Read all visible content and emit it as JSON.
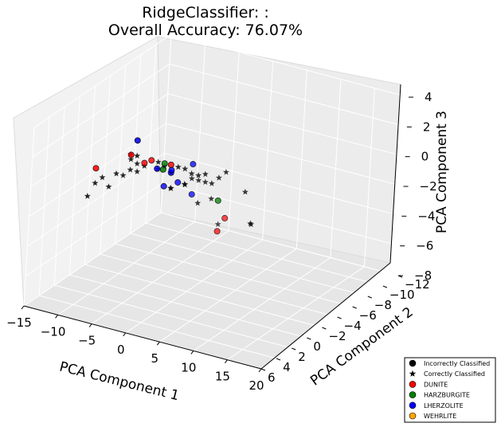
{
  "chart_data": {
    "type": "scatter",
    "projection": "3d",
    "title": "RidgeClassifier: :",
    "subtitle": "Overall Accuracy: 76.07%",
    "xlabel": "PCA Component 1",
    "ylabel": "PCA Component 2",
    "zlabel": "PCA Component 3",
    "xlim": [
      -15,
      20
    ],
    "ylim": [
      -12,
      6
    ],
    "zlim": [
      -8,
      4
    ],
    "x_ticks": [
      "−15",
      "−10",
      "−5",
      "0",
      "5",
      "10",
      "15",
      "20"
    ],
    "y_ticks": [
      "−12",
      "−10",
      "−8",
      "−6",
      "−4",
      "−2",
      "0",
      "2",
      "4",
      "6"
    ],
    "z_ticks": [
      "−8",
      "−6",
      "−4",
      "−2",
      "0",
      "2",
      "4"
    ],
    "grid": true,
    "legend_position": "bottom-right",
    "colors": {
      "DUNITE": "#ff0000",
      "HARZBURGITE": "#008000",
      "LHERZOLITE": "#0000ff",
      "WEHRLITE": "#ffa500",
      "marker_face": "#000000"
    },
    "legend": [
      {
        "label": "Incorrectly Classified",
        "marker": "circle",
        "color": "#000000"
      },
      {
        "label": "Correctly Classified",
        "marker": "star",
        "color": "#000000"
      },
      {
        "label": "DUNITE",
        "marker": "circle",
        "color": "#ff0000"
      },
      {
        "label": "HARZBURGITE",
        "marker": "circle",
        "color": "#008000"
      },
      {
        "label": "LHERZOLITE",
        "marker": "circle",
        "color": "#0000ff"
      },
      {
        "label": "WEHRLITE",
        "marker": "circle",
        "color": "#ffa500"
      }
    ],
    "incorrect_points": [
      {
        "x": -11,
        "y": 1,
        "z": 0,
        "class": "DUNITE"
      },
      {
        "x": -6,
        "y": 1,
        "z": 1.5,
        "class": "DUNITE"
      },
      {
        "x": -3,
        "y": 1,
        "z": 1.5,
        "class": "DUNITE"
      },
      {
        "x": -4,
        "y": 1,
        "z": 1.2,
        "class": "DUNITE"
      },
      {
        "x": 2,
        "y": 3,
        "z": 2.5,
        "class": "DUNITE"
      },
      {
        "x": 6,
        "y": -1,
        "z": -2,
        "class": "DUNITE"
      },
      {
        "x": 5,
        "y": -1,
        "z": -3,
        "class": "DUNITE"
      },
      {
        "x": 3,
        "y": 5,
        "z": 3,
        "class": "HARZBURGITE"
      },
      {
        "x": 7,
        "y": 1,
        "z": 0,
        "class": "HARZBURGITE"
      },
      {
        "x": 0,
        "y": 2,
        "z": 2,
        "class": "HARZBURGITE"
      },
      {
        "x": -2,
        "y": 4,
        "z": 4,
        "class": "LHERZOLITE"
      },
      {
        "x": 0,
        "y": 3,
        "z": 2,
        "class": "LHERZOLITE"
      },
      {
        "x": 1,
        "y": 2,
        "z": 1.5,
        "class": "LHERZOLITE"
      },
      {
        "x": 0,
        "y": 1,
        "z": 1.2,
        "class": "LHERZOLITE"
      },
      {
        "x": 1,
        "y": 1,
        "z": 0.5,
        "class": "LHERZOLITE"
      },
      {
        "x": -1,
        "y": 1,
        "z": 0,
        "class": "LHERZOLITE"
      },
      {
        "x": 1,
        "y": -1,
        "z": -1,
        "class": "LHERZOLITE"
      },
      {
        "x": 2,
        "y": 0,
        "z": 1.5,
        "class": "LHERZOLITE"
      }
    ],
    "correct_points": [
      {
        "x": -12,
        "y": 1,
        "z": -2
      },
      {
        "x": -11,
        "y": 1,
        "z": -1
      },
      {
        "x": -9,
        "y": 1,
        "z": -1
      },
      {
        "x": -10,
        "y": 1,
        "z": -0.5
      },
      {
        "x": -8,
        "y": 1,
        "z": 0
      },
      {
        "x": -7,
        "y": 1,
        "z": 0
      },
      {
        "x": -6,
        "y": 1,
        "z": 0.5
      },
      {
        "x": -5,
        "y": 1,
        "z": 0.5
      },
      {
        "x": -4,
        "y": 1,
        "z": 1
      },
      {
        "x": -6,
        "y": 1,
        "z": 1.2
      },
      {
        "x": -2,
        "y": 1,
        "z": 1.5
      },
      {
        "x": -1,
        "y": 2,
        "z": 1.5
      },
      {
        "x": 0,
        "y": 2,
        "z": 1.8
      },
      {
        "x": 1,
        "y": 2,
        "z": 1.5
      },
      {
        "x": 2,
        "y": 2,
        "z": 2
      },
      {
        "x": 3,
        "y": 2,
        "z": 2
      },
      {
        "x": 4,
        "y": 2,
        "z": 1.8
      },
      {
        "x": 5,
        "y": 2,
        "z": 1.8
      },
      {
        "x": 6,
        "y": 2,
        "z": 2
      },
      {
        "x": 7,
        "y": 2,
        "z": 1.5
      },
      {
        "x": 8,
        "y": 2,
        "z": 2
      },
      {
        "x": 9,
        "y": 2,
        "z": 2.5
      },
      {
        "x": 3,
        "y": 1,
        "z": 1
      },
      {
        "x": 4,
        "y": 1,
        "z": 1
      },
      {
        "x": 5,
        "y": 1,
        "z": 1
      },
      {
        "x": 2,
        "y": 1,
        "z": 0.5
      },
      {
        "x": 0,
        "y": 1,
        "z": 0
      },
      {
        "x": 6,
        "y": 1,
        "z": 0
      },
      {
        "x": -5,
        "y": 2,
        "z": 2
      },
      {
        "x": -4,
        "y": 2,
        "z": 1.5
      },
      {
        "x": -3,
        "y": 3,
        "z": 2.5
      },
      {
        "x": 3,
        "y": 0,
        "z": -1
      },
      {
        "x": 4,
        "y": -2,
        "z": -3
      },
      {
        "x": 13,
        "y": 3,
        "z": 2
      },
      {
        "x": 14,
        "y": 3,
        "z": 0
      },
      {
        "x": 12,
        "y": 1,
        "z": -1
      },
      {
        "x": -1,
        "y": 0,
        "z": -0.5
      },
      {
        "x": 1,
        "y": 0,
        "z": 0
      }
    ]
  }
}
